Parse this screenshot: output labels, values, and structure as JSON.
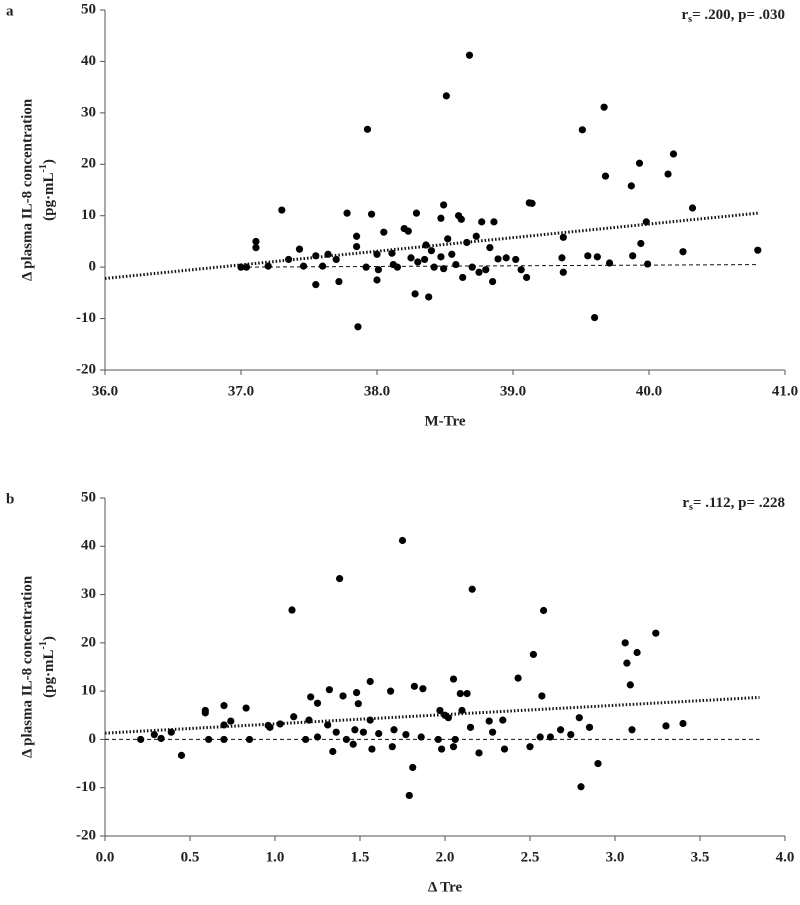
{
  "chart_data": [
    {
      "type": "scatter",
      "panel": "a",
      "annotation": [
        "r",
        "s",
        "= .200, p= .030"
      ],
      "xlabel": "M-Tre",
      "ylabel": "Δ plasma IL-8 concentration",
      "ylabel_unit": [
        "(pg·mL",
        "-1",
        ")"
      ],
      "xlim": [
        36,
        41
      ],
      "ylim": [
        -20,
        50
      ],
      "xticks": [
        {
          "value": 36,
          "label": "36.0"
        },
        {
          "value": 37,
          "label": "37.0"
        },
        {
          "value": 38,
          "label": "38.0"
        },
        {
          "value": 39,
          "label": "39.0"
        },
        {
          "value": 40,
          "label": "40.0"
        },
        {
          "value": 41,
          "label": "41.0"
        }
      ],
      "yticks": [
        -20,
        -10,
        0,
        10,
        20,
        30,
        40,
        50
      ],
      "color": "#000000",
      "x": [
        38.68,
        38.51,
        39.67,
        37.93,
        39.51,
        40.18,
        39.93,
        39.68,
        40.14,
        39.87,
        37.3,
        40.32,
        39.12,
        39.14,
        38.49,
        37.78,
        38.29,
        37.96,
        38.6,
        38.62,
        38.47,
        38.86,
        38.77,
        39.98,
        38.2,
        38.23,
        38.05,
        37.85,
        38.73,
        39.37,
        38.52,
        37.11,
        38.66,
        38.36,
        37.11,
        37.85,
        37.43,
        38.83,
        39.94,
        38.4,
        38.55,
        37.64,
        38.0,
        38.11,
        38.47,
        37.55,
        37.7,
        38.25,
        38.35,
        38.89,
        38.95,
        39.02,
        39.36,
        39.55,
        39.62,
        39.88,
        40.25,
        40.8,
        37.35,
        37.2,
        37.04,
        37.0,
        37.46,
        37.6,
        37.92,
        38.01,
        38.12,
        38.15,
        38.3,
        38.42,
        38.49,
        38.58,
        38.7,
        38.75,
        38.8,
        39.06,
        39.1,
        39.37,
        39.71,
        39.99,
        38.0,
        37.72,
        37.55,
        38.63,
        38.85,
        38.28,
        38.38,
        37.86,
        39.6
      ],
      "values": [
        41.2,
        33.3,
        31.1,
        26.8,
        26.7,
        22.0,
        20.2,
        17.7,
        18.1,
        15.8,
        11.1,
        11.5,
        12.5,
        12.4,
        12.1,
        10.5,
        10.5,
        10.3,
        10.0,
        9.3,
        9.5,
        8.8,
        8.8,
        8.8,
        7.5,
        7.0,
        6.8,
        6.0,
        6.0,
        5.8,
        5.5,
        5.0,
        4.8,
        4.3,
        3.8,
        4.0,
        3.5,
        3.8,
        4.6,
        3.2,
        2.5,
        2.5,
        2.5,
        2.7,
        2.0,
        2.2,
        1.5,
        1.8,
        1.5,
        1.6,
        1.8,
        1.5,
        1.8,
        2.2,
        2.0,
        2.2,
        3.0,
        3.3,
        1.5,
        0.2,
        0.0,
        0.0,
        0.2,
        0.2,
        0.0,
        -0.5,
        0.5,
        0.0,
        1.0,
        0.0,
        -0.3,
        0.5,
        0.0,
        -1.0,
        -0.5,
        -0.5,
        -2.0,
        -1.0,
        0.8,
        0.6,
        -2.5,
        -2.8,
        -3.4,
        -2.0,
        -2.8,
        -5.2,
        -5.8,
        -11.6,
        -9.8
      ],
      "trendline": {
        "x": [
          36.0,
          40.8
        ],
        "y": [
          -2.2,
          10.5
        ]
      },
      "zero_line": {
        "x": [
          37.0,
          40.8
        ],
        "y": [
          0.0,
          0.5
        ]
      }
    },
    {
      "type": "scatter",
      "panel": "b",
      "annotation": [
        "r",
        "s",
        "= .112, p= .228"
      ],
      "xlabel": "Δ Tre",
      "ylabel": "Δ plasma IL-8 concentration",
      "ylabel_unit": [
        "(pg·mL",
        "-1",
        ")"
      ],
      "xlim": [
        0,
        4
      ],
      "ylim": [
        -20,
        50
      ],
      "xticks": [
        {
          "value": 0,
          "label": "0.0"
        },
        {
          "value": 0.5,
          "label": "0.5"
        },
        {
          "value": 1,
          "label": "1.0"
        },
        {
          "value": 1.5,
          "label": "1.5"
        },
        {
          "value": 2,
          "label": "2.0"
        },
        {
          "value": 2.5,
          "label": "2.5"
        },
        {
          "value": 3,
          "label": "3.0"
        },
        {
          "value": 3.5,
          "label": "3.5"
        },
        {
          "value": 4,
          "label": "4.0"
        }
      ],
      "yticks": [
        -20,
        -10,
        0,
        10,
        20,
        30,
        40,
        50
      ],
      "color": "#000000",
      "x": [
        1.75,
        1.38,
        2.16,
        1.1,
        2.58,
        3.24,
        3.06,
        3.13,
        3.07,
        2.52,
        3.09,
        1.56,
        2.05,
        2.43,
        1.82,
        1.87,
        1.32,
        1.48,
        1.68,
        2.09,
        2.13,
        2.57,
        1.4,
        1.25,
        1.49,
        1.21,
        0.7,
        0.83,
        0.59,
        0.59,
        1.11,
        1.56,
        1.2,
        1.97,
        2.1,
        2.0,
        2.02,
        2.26,
        2.34,
        0.74,
        0.7,
        0.96,
        0.97,
        1.03,
        1.31,
        1.36,
        1.47,
        1.52,
        1.61,
        1.7,
        1.77,
        2.15,
        2.28,
        2.68,
        2.79,
        2.85,
        3.1,
        3.3,
        3.4,
        0.61,
        0.7,
        0.85,
        1.18,
        1.25,
        1.42,
        1.86,
        1.96,
        2.06,
        2.56,
        2.62,
        2.74,
        0.21,
        0.33,
        0.39,
        0.29,
        1.34,
        1.46,
        1.57,
        1.69,
        1.98,
        2.05,
        2.2,
        2.35,
        2.5,
        0.45,
        1.81,
        2.9,
        2.8,
        1.79
      ],
      "values": [
        41.2,
        33.3,
        31.1,
        26.8,
        26.7,
        22.0,
        20.0,
        18.0,
        15.8,
        17.6,
        11.3,
        12.0,
        12.5,
        12.7,
        11.0,
        10.5,
        10.3,
        9.7,
        10.0,
        9.5,
        9.5,
        9.0,
        9.0,
        7.5,
        7.4,
        8.8,
        7.0,
        6.5,
        5.5,
        6.0,
        4.7,
        4.0,
        4.0,
        6.0,
        6.0,
        5.0,
        4.5,
        3.8,
        4.0,
        3.8,
        3.0,
        2.9,
        2.5,
        3.2,
        3.0,
        1.5,
        2.0,
        1.5,
        1.2,
        2.0,
        1.0,
        2.5,
        1.5,
        2.0,
        4.5,
        2.5,
        2.0,
        2.8,
        3.3,
        0.0,
        0.0,
        0.0,
        0.0,
        0.5,
        0.0,
        0.5,
        0.0,
        0.0,
        0.5,
        0.5,
        1.0,
        0.0,
        0.2,
        1.5,
        1.0,
        -2.5,
        -1.0,
        -2.0,
        -1.5,
        -2.0,
        -1.5,
        -2.8,
        -2.0,
        -1.5,
        -3.3,
        -5.8,
        -5.0,
        -9.8,
        -11.6
      ],
      "trendline": {
        "x": [
          0.0,
          3.85
        ],
        "y": [
          1.3,
          8.7
        ]
      },
      "zero_line": {
        "x": [
          0.0,
          3.85
        ],
        "y": [
          0.0,
          0.0
        ]
      }
    }
  ]
}
